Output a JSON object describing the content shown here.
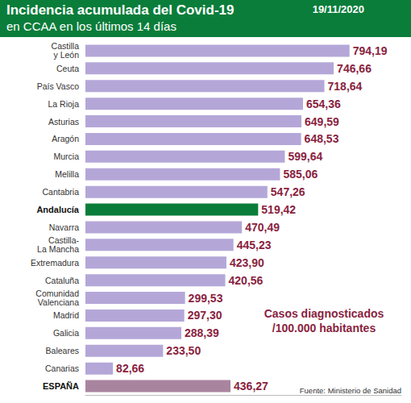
{
  "chart_data": {
    "type": "bar",
    "orientation": "horizontal",
    "title": "Incidencia acumulada del Covid-19",
    "subtitle": "en CCAA en los últimos 14 días",
    "date": "19/11/2020",
    "annotation": "Casos diagnosticados\n/100.000 habitantes",
    "source": "Fuente: Ministerio de Sanidad",
    "categories": [
      "Castilla\ny León",
      "Ceuta",
      "País Vasco",
      "La Rioja",
      "Asturias",
      "Aragón",
      "Murcia",
      "Melilla",
      "Cantabria",
      "Andalucía",
      "Navarra",
      "Castilla-\nLa Mancha",
      "Extremadura",
      "Cataluña",
      "Comunidad\nValenciana",
      "Madrid",
      "Galicia",
      "Baleares",
      "Canarias",
      "ESPAÑA"
    ],
    "values": [
      794.19,
      746.66,
      718.64,
      654.36,
      649.59,
      648.53,
      599.64,
      585.06,
      547.26,
      519.42,
      470.49,
      445.23,
      423.9,
      420.56,
      299.53,
      297.3,
      288.39,
      233.5,
      82.66,
      436.27
    ],
    "value_labels": [
      "794,19",
      "746,66",
      "718,64",
      "654,36",
      "649,59",
      "648,53",
      "599,64",
      "585,06",
      "547,26",
      "519,42",
      "470,49",
      "445,23",
      "423,90",
      "420,56",
      "299,53",
      "297,30",
      "288,39",
      "233,50",
      "82,66",
      "436,27"
    ],
    "colors": [
      "#b4a7d8",
      "#b4a7d8",
      "#b4a7d8",
      "#b4a7d8",
      "#b4a7d8",
      "#b4a7d8",
      "#b4a7d8",
      "#b4a7d8",
      "#b4a7d8",
      "#0a7d3a",
      "#b4a7d8",
      "#b4a7d8",
      "#b4a7d8",
      "#b4a7d8",
      "#b4a7d8",
      "#b4a7d8",
      "#b4a7d8",
      "#b4a7d8",
      "#b4a7d8",
      "#a9849f"
    ],
    "xlim": [
      0,
      950
    ],
    "data_labels": true,
    "tick_labels": "y",
    "grid": false
  }
}
